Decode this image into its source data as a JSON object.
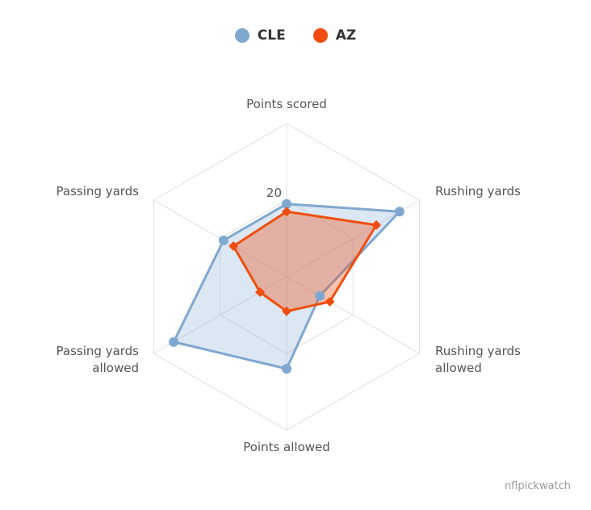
{
  "chart_data": {
    "type": "radar",
    "axes": [
      "Points scored",
      "Rushing yards",
      "Rushing yards allowed",
      "Points allowed",
      "Passing yards allowed",
      "Passing yards"
    ],
    "axes_display": [
      [
        "Points scored"
      ],
      [
        "Rushing yards"
      ],
      [
        "Rushing yards",
        "allowed"
      ],
      [
        "Points allowed"
      ],
      [
        "Passing yards",
        "allowed"
      ],
      [
        "Passing yards"
      ]
    ],
    "max": 40,
    "ticks": [
      20
    ],
    "series": [
      {
        "name": "CLE",
        "values": [
          19,
          34,
          10,
          24,
          34,
          19
        ],
        "color": "#7fa8d1",
        "marker": "circle"
      },
      {
        "name": "AZ",
        "values": [
          17,
          27,
          13,
          9,
          8,
          16
        ],
        "color": "#f04e10",
        "marker": "diamond"
      }
    ],
    "legend": "top-center",
    "grid": true
  },
  "credits": "nflpickwatch"
}
